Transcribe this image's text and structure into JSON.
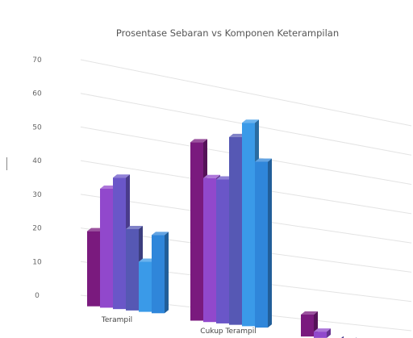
{
  "chart_data": {
    "type": "bar",
    "style": "3d-clustered-column",
    "title": "Prosentase Sebaran vs Komponen Keterampilan",
    "categories": [
      "Terampil",
      "Cukup Terampil",
      ""
    ],
    "series": [
      {
        "color": "#7a1a7e",
        "values": [
          24,
          57,
          7
        ]
      },
      {
        "color": "#9148cc",
        "values": [
          38,
          46,
          2
        ]
      },
      {
        "color": "#6a56c8",
        "values": [
          42,
          46,
          -3
        ]
      },
      {
        "color": "#5658b4",
        "values": [
          26,
          60,
          -3
        ]
      },
      {
        "color": "#3a9ae8",
        "values": [
          16,
          65,
          -1
        ]
      },
      {
        "color": "#2f86da",
        "values": [
          25,
          53,
          -1
        ]
      }
    ],
    "ylim": [
      0,
      70
    ],
    "yticks": [
      0,
      10,
      20,
      30,
      40,
      50,
      60,
      70
    ],
    "grid": true,
    "legend": "none"
  }
}
